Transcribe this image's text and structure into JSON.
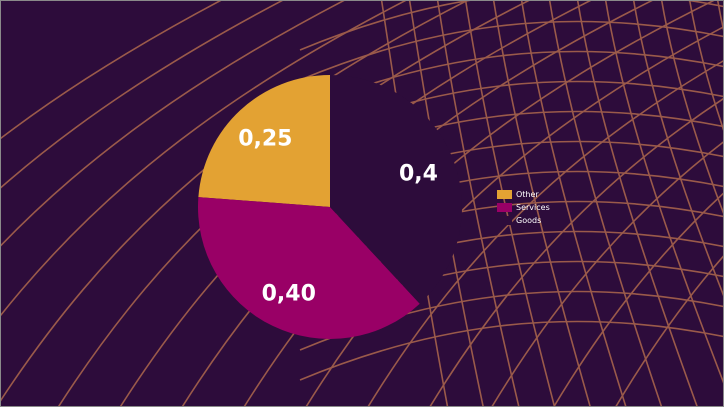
{
  "colors": {
    "background": "#2d0c3b",
    "lines": "#9a5a4a",
    "other": "#e3a233",
    "services": "#990066",
    "goods": "#2d0c3b"
  },
  "chart_data": {
    "type": "pie",
    "title": "",
    "slices": [
      {
        "name": "Other",
        "value": 0.25,
        "label": "0,25",
        "color": "#e3a233"
      },
      {
        "name": "Services",
        "value": 0.4,
        "label": "0,40",
        "color": "#990066"
      },
      {
        "name": "Goods",
        "value": 0.4,
        "label": "0,4",
        "color": "#2d0c3b"
      }
    ],
    "legend_position": "right",
    "legend": [
      {
        "label": "Other",
        "color": "#e3a233"
      },
      {
        "label": "Services",
        "color": "#990066"
      },
      {
        "label": "Goods",
        "color": "#2d0c3b"
      }
    ]
  }
}
